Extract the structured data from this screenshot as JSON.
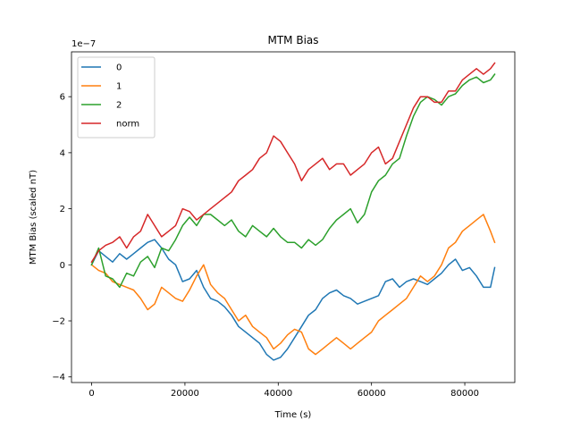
{
  "chart_data": {
    "type": "line",
    "title": "MTM Bias",
    "xlabel": "Time (s)",
    "ylabel": "MTM Bias (scaled nT)",
    "offset_text": "1e−7",
    "xlim": [
      -4320,
      90720
    ],
    "ylim": [
      -4.2,
      7.6
    ],
    "x_ticks": [
      0,
      20000,
      40000,
      60000,
      80000
    ],
    "x_tick_labels": [
      "0",
      "20000",
      "40000",
      "60000",
      "80000"
    ],
    "y_ticks": [
      -4,
      -2,
      0,
      2,
      4,
      6
    ],
    "y_tick_labels": [
      "−4",
      "−2",
      "0",
      "2",
      "4",
      "6"
    ],
    "grid": false,
    "legend_position": "top-left",
    "x": [
      0,
      1500,
      3000,
      4500,
      6000,
      7500,
      9000,
      10500,
      12000,
      13500,
      15000,
      16500,
      18000,
      19500,
      21000,
      22500,
      24000,
      25500,
      27000,
      28500,
      30000,
      31500,
      33000,
      34500,
      36000,
      37500,
      39000,
      40500,
      42000,
      43500,
      45000,
      46500,
      48000,
      49500,
      51000,
      52500,
      54000,
      55500,
      57000,
      58500,
      60000,
      61500,
      63000,
      64500,
      66000,
      67500,
      69000,
      70500,
      72000,
      73500,
      75000,
      76500,
      78000,
      79500,
      81000,
      82500,
      84000,
      85500,
      86400
    ],
    "series": [
      {
        "name": "0",
        "color": "#1f77b4",
        "values": [
          0.0,
          0.5,
          0.3,
          0.1,
          0.4,
          0.2,
          0.4,
          0.6,
          0.8,
          0.9,
          0.6,
          0.2,
          0.0,
          -0.6,
          -0.5,
          -0.2,
          -0.8,
          -1.2,
          -1.3,
          -1.5,
          -1.8,
          -2.2,
          -2.4,
          -2.6,
          -2.8,
          -3.2,
          -3.4,
          -3.3,
          -3.0,
          -2.6,
          -2.2,
          -1.8,
          -1.6,
          -1.2,
          -1.0,
          -0.9,
          -1.1,
          -1.2,
          -1.4,
          -1.3,
          -1.2,
          -1.1,
          -0.6,
          -0.5,
          -0.8,
          -0.6,
          -0.5,
          -0.6,
          -0.7,
          -0.5,
          -0.3,
          0.0,
          0.2,
          -0.2,
          -0.1,
          -0.4,
          -0.8,
          -0.8,
          -0.1
        ]
      },
      {
        "name": "1",
        "color": "#ff7f0e",
        "values": [
          0.0,
          -0.2,
          -0.3,
          -0.6,
          -0.7,
          -0.8,
          -0.9,
          -1.2,
          -1.6,
          -1.4,
          -0.8,
          -1.0,
          -1.2,
          -1.3,
          -0.9,
          -0.4,
          0.0,
          -0.7,
          -1.0,
          -1.2,
          -1.6,
          -2.0,
          -1.8,
          -2.2,
          -2.4,
          -2.6,
          -3.0,
          -2.8,
          -2.5,
          -2.3,
          -2.4,
          -3.0,
          -3.2,
          -3.0,
          -2.8,
          -2.6,
          -2.8,
          -3.0,
          -2.8,
          -2.6,
          -2.4,
          -2.0,
          -1.8,
          -1.6,
          -1.4,
          -1.2,
          -0.8,
          -0.4,
          -0.6,
          -0.4,
          0.0,
          0.6,
          0.8,
          1.2,
          1.4,
          1.6,
          1.8,
          1.2,
          0.8
        ]
      },
      {
        "name": "2",
        "color": "#2ca02c",
        "values": [
          0.0,
          0.6,
          -0.4,
          -0.5,
          -0.8,
          -0.3,
          -0.4,
          0.1,
          0.3,
          -0.1,
          0.6,
          0.5,
          0.9,
          1.4,
          1.7,
          1.4,
          1.8,
          1.8,
          1.6,
          1.4,
          1.6,
          1.2,
          1.0,
          1.4,
          1.2,
          1.0,
          1.3,
          1.0,
          0.8,
          0.8,
          0.6,
          0.9,
          0.7,
          0.9,
          1.3,
          1.6,
          1.8,
          2.0,
          1.5,
          1.8,
          2.6,
          3.0,
          3.2,
          3.6,
          3.8,
          4.6,
          5.3,
          5.8,
          6.0,
          5.9,
          5.7,
          6.0,
          6.1,
          6.4,
          6.6,
          6.7,
          6.5,
          6.6,
          6.8
        ]
      },
      {
        "name": "norm",
        "color": "#d62728",
        "values": [
          0.1,
          0.5,
          0.7,
          0.8,
          1.0,
          0.6,
          1.0,
          1.2,
          1.8,
          1.4,
          1.0,
          1.2,
          1.4,
          2.0,
          1.9,
          1.6,
          1.8,
          2.0,
          2.2,
          2.4,
          2.6,
          3.0,
          3.2,
          3.4,
          3.8,
          4.0,
          4.6,
          4.4,
          4.0,
          3.6,
          3.0,
          3.4,
          3.6,
          3.8,
          3.4,
          3.6,
          3.6,
          3.2,
          3.4,
          3.6,
          4.0,
          4.2,
          3.6,
          3.8,
          4.4,
          5.0,
          5.6,
          6.0,
          6.0,
          5.8,
          5.8,
          6.2,
          6.2,
          6.6,
          6.8,
          7.0,
          6.8,
          7.0,
          7.2
        ]
      }
    ]
  }
}
